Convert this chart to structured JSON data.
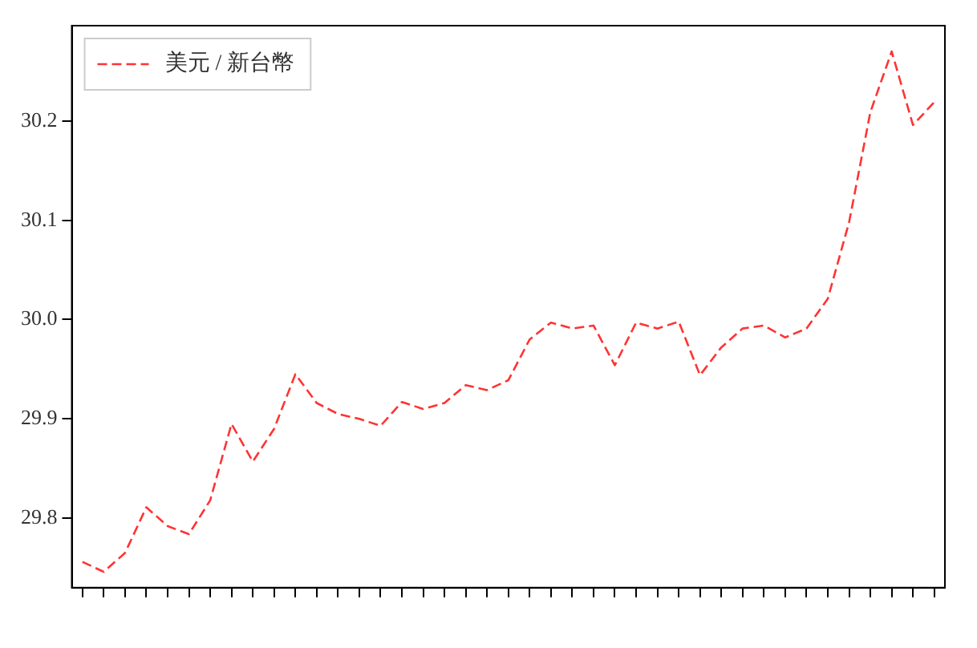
{
  "chart_data": {
    "type": "line",
    "categories": [
      null,
      null,
      null,
      null,
      null,
      null,
      null,
      null,
      null,
      null,
      null,
      null,
      null,
      null,
      null,
      null,
      null,
      null,
      null,
      null,
      null,
      null,
      null,
      null,
      null,
      null,
      null,
      null,
      null,
      null,
      null,
      null,
      null,
      null,
      null,
      null,
      null,
      null,
      null,
      null,
      null
    ],
    "series": [
      {
        "name": "美元 / 新台幣",
        "color": "#ff3333",
        "values": [
          29.756,
          29.746,
          29.765,
          29.811,
          29.792,
          29.784,
          29.818,
          29.895,
          29.857,
          29.89,
          29.945,
          29.916,
          29.905,
          29.9,
          29.893,
          29.917,
          29.91,
          29.916,
          29.934,
          29.929,
          29.939,
          29.98,
          29.997,
          29.991,
          29.994,
          29.954,
          29.997,
          29.991,
          29.998,
          29.944,
          29.972,
          29.991,
          29.994,
          29.982,
          29.991,
          30.021,
          30.098,
          30.209,
          30.27,
          30.196,
          30.219
        ]
      }
    ],
    "ylim": [
      29.73,
      30.296
    ],
    "yticks": [
      29.8,
      29.9,
      {
        "value": 30.0,
        "label": "30.0"
      },
      30.1,
      30.2
    ],
    "legend": "top left",
    "line_style": "dashed",
    "marker": "none"
  }
}
